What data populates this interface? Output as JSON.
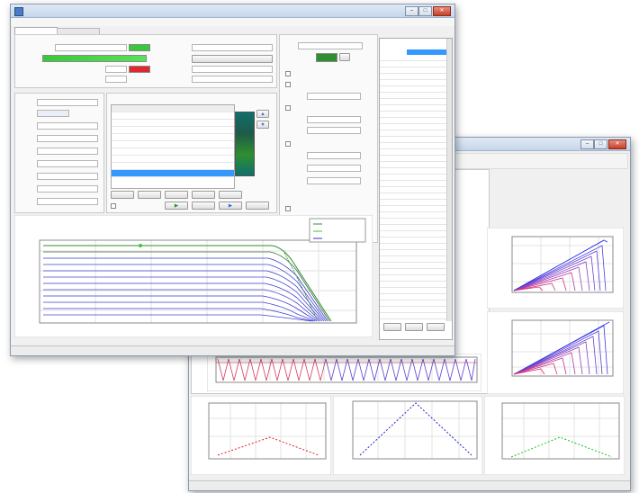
{
  "front_window": {
    "title": "",
    "menu": [
      "",
      "",
      ""
    ],
    "tabs": [
      "",
      ""
    ],
    "status_left": "",
    "status_right": ""
  },
  "colors": {
    "good": "#38c93a",
    "bad": "#e0282e",
    "teal": "#0e6f6c",
    "green_dark": "#2f8f2f",
    "selection": "#3399ff"
  },
  "icons": [
    "minimize-icon",
    "maximize-icon",
    "close-icon",
    "app-icon",
    "arrow-up-icon",
    "arrow-down-icon"
  ],
  "back_window": {
    "title": "",
    "status_left": "",
    "status_right": ""
  }
}
